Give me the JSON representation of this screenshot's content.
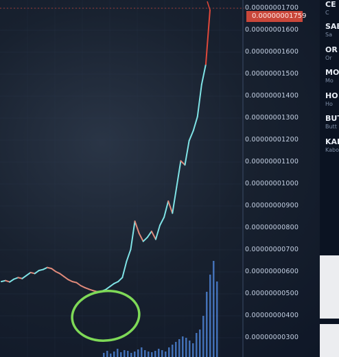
{
  "chart_data": {
    "type": "line",
    "title": "",
    "xlabel": "",
    "ylabel": "",
    "ylim": [
      2.5e-10,
      1.8e-08
    ],
    "y_axis_labels": [
      "0.00000001700",
      "0.00000001600",
      "0.00000001500",
      "0.00000001400",
      "0.00000001300",
      "0.00000001200",
      "0.00000001100",
      "0.00000001000",
      "0.00000000900",
      "0.00000000800",
      "0.00000000700",
      "0.00000000600",
      "0.00000000500",
      "0.00000000400",
      "0.00000000300"
    ],
    "series": [
      {
        "values": [
          4e-09,
          4.05e-09,
          3.98e-09,
          4.12e-09,
          4.2e-09,
          4.15e-09,
          4.3e-09,
          4.45e-09,
          4.4e-09,
          4.55e-09,
          4.6e-09,
          4.7e-09,
          4.65e-09,
          4.5e-09,
          4.4e-09,
          4.25e-09,
          4.1e-09,
          4e-09,
          3.95e-09,
          3.8e-09,
          3.7e-09,
          3.62e-09,
          3.55e-09,
          3.5e-09,
          3.52e-09,
          3.6e-09,
          3.75e-09,
          3.9e-09,
          4e-09,
          4.2e-09,
          5e-09,
          5.6e-09,
          7e-09,
          6.4e-09,
          6e-09,
          6.2e-09,
          6.5e-09,
          6.1e-09,
          6.8e-09,
          7.2e-09,
          8e-09,
          7.4e-09,
          8.7e-09,
          1e-08,
          9.8e-09,
          1.1e-08,
          1.15e-08,
          1.22e-08,
          1.38e-08,
          1.48e-08,
          1.75e-08
        ]
      }
    ],
    "highlight_circle": true,
    "grid": true
  },
  "current_price": "0.00000001759",
  "side_list": [
    {
      "title": "CE",
      "subtitle": "C"
    },
    {
      "title": "SAB",
      "subtitle": "Sa"
    },
    {
      "title": "OR",
      "subtitle": "Or"
    },
    {
      "title": "MO",
      "subtitle": "Mo"
    },
    {
      "title": "HO",
      "subtitle": "Ho"
    },
    {
      "title": "BUT",
      "subtitle": "Butt"
    },
    {
      "title": "KAB",
      "subtitle": "Kabo"
    }
  ],
  "colors": {
    "up": "#7fe3e6",
    "down": "#e08a7a",
    "spike": "#e0483a",
    "circle": "#7ed957",
    "grid": "#2c3a52",
    "volume": "#4f86d9"
  }
}
